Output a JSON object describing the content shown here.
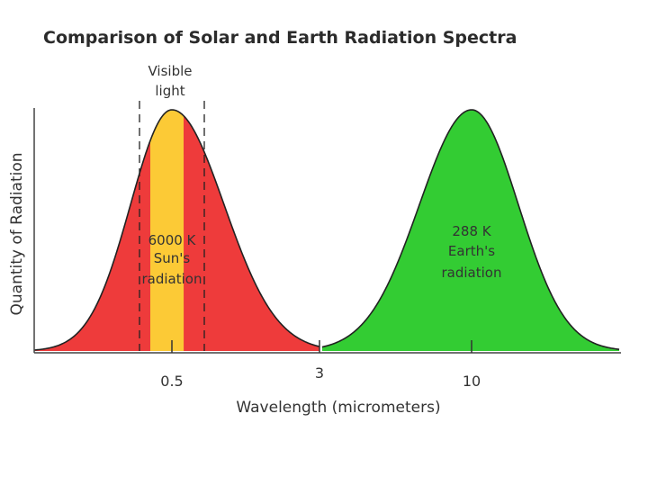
{
  "chart_data": {
    "type": "area",
    "title": "Comparison of Solar and Earth Radiation Spectra",
    "xlabel": "Wavelength (micrometers)",
    "ylabel": "Quantity of Radiation",
    "ticks": [
      {
        "label": "0.5",
        "position": 0.5
      },
      {
        "label": "3",
        "position": 3
      },
      {
        "label": "10",
        "position": 10
      }
    ],
    "visible_band": {
      "line1": "Visible",
      "line2": "light",
      "start": 0.4,
      "end": 0.7
    },
    "series": [
      {
        "name": "sun",
        "label_lines": [
          "6000 K",
          "Sun's",
          "radiation"
        ],
        "peak": 0.5,
        "outside_color": "#ee3b3b",
        "visible_color": "#fcca36"
      },
      {
        "name": "earth",
        "label_lines": [
          "288 K",
          "Earth's",
          "radiation"
        ],
        "peak": 10,
        "color": "#33cc33"
      }
    ]
  }
}
